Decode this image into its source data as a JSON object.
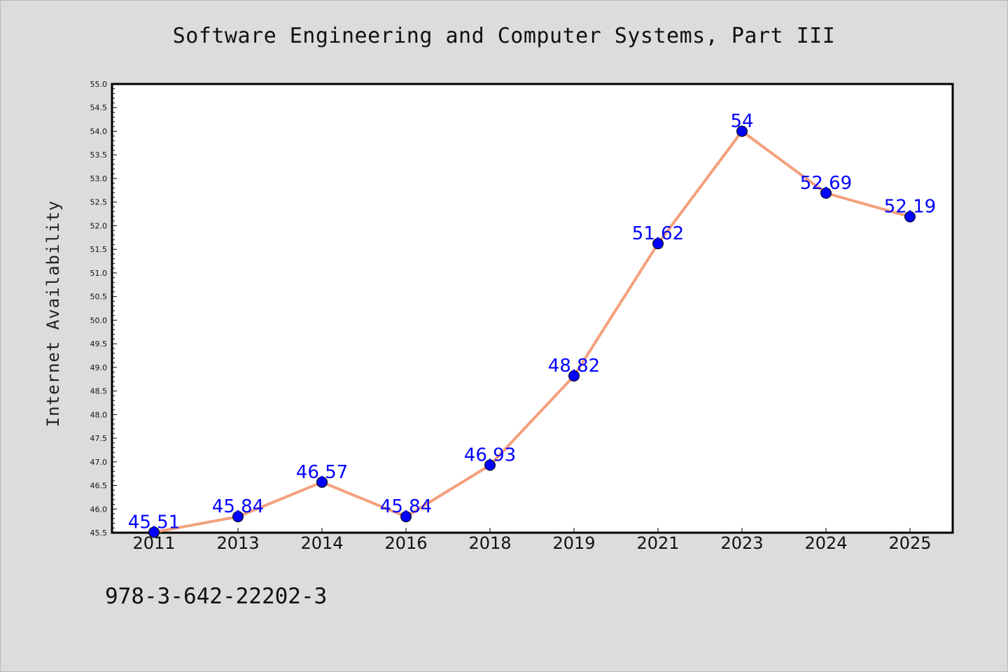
{
  "title": "Software Engineering and Computer Systems, Part III",
  "footer_text": "978-3-642-22202-3",
  "colors": {
    "background": "#dcdcdc",
    "plot_background": "#ffffff",
    "line": "#f4a07c",
    "marker": "#0000ff",
    "data_label": "#0000ff"
  },
  "chart_data": {
    "type": "line",
    "title": "Software Engineering and Computer Systems, Part III",
    "xlabel": "",
    "ylabel": "Internet Availability",
    "categories": [
      "2011",
      "2013",
      "2014",
      "2016",
      "2018",
      "2019",
      "2021",
      "2023",
      "2024",
      "2025"
    ],
    "series": [
      {
        "values": [
          45.51,
          45.84,
          46.57,
          45.84,
          46.93,
          48.82,
          51.62,
          54,
          52.69,
          52.19
        ],
        "labels": [
          "45.51",
          "45.84",
          "46.57",
          "45.84",
          "46.93",
          "48.82",
          "51.62",
          "54",
          "52.69",
          "52.19"
        ]
      }
    ],
    "ylim": [
      45.5,
      55.0
    ],
    "yticks": [
      "45.5",
      "46.0",
      "46.5",
      "47.0",
      "47.5",
      "48.0",
      "48.5",
      "49.0",
      "49.5",
      "50.0",
      "50.5",
      "51.0",
      "51.5",
      "52.0",
      "52.5",
      "53.0",
      "53.5",
      "54.0",
      "54.5",
      "55.0"
    ],
    "grid": false,
    "legend": "none"
  }
}
